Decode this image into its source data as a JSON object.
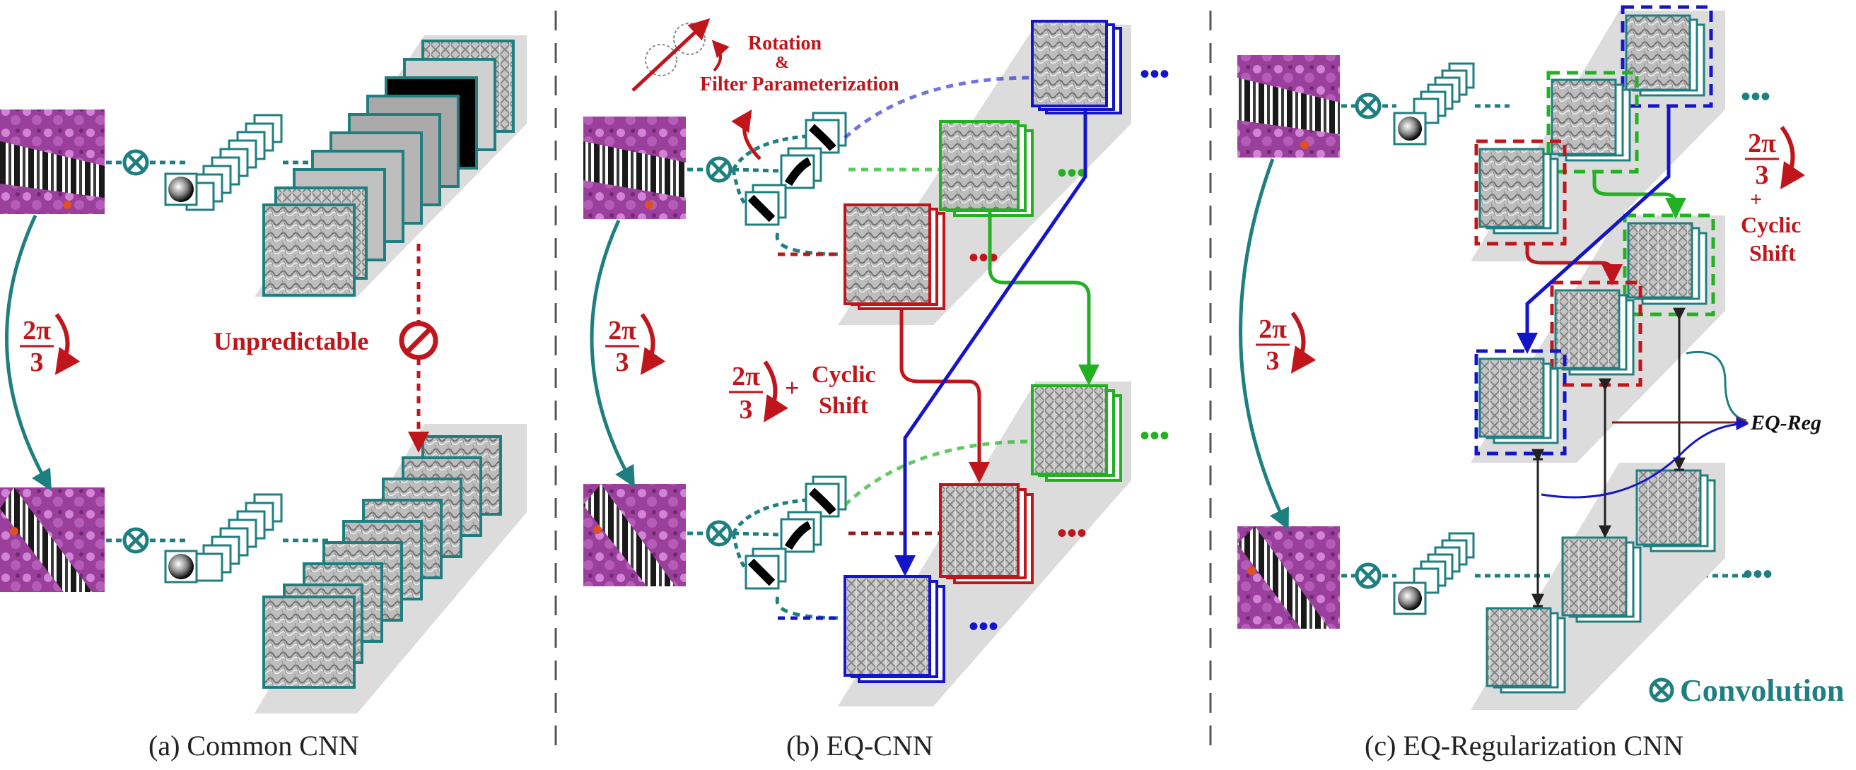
{
  "captions": {
    "a": "(a) Common CNN",
    "b": "(b) EQ-CNN",
    "c": "(c) EQ-Regularization CNN"
  },
  "labels": {
    "rotation_angle_num": "2π",
    "rotation_angle_den": "3",
    "unpredictable": "Unpredictable",
    "rotation_title_1": "Rotation",
    "rotation_title_amp": "&",
    "rotation_title_2": "Filter Parameterization",
    "plus": "+",
    "cyclic": "Cyclic",
    "shift": "Shift",
    "eq_reg": "EQ-Reg",
    "convolution": "Convolution",
    "ellipsis": "•••"
  },
  "colors": {
    "teal": "#1f7f80",
    "red": "#c0151b",
    "green": "#22b122",
    "blue": "#1515c8",
    "panel_gray": "#dcdcdc",
    "divider": "#555555"
  },
  "icons": {
    "conv": "circled-times-icon",
    "blocked": "no-entry-icon",
    "rotate": "rotation-arrow-icon"
  }
}
